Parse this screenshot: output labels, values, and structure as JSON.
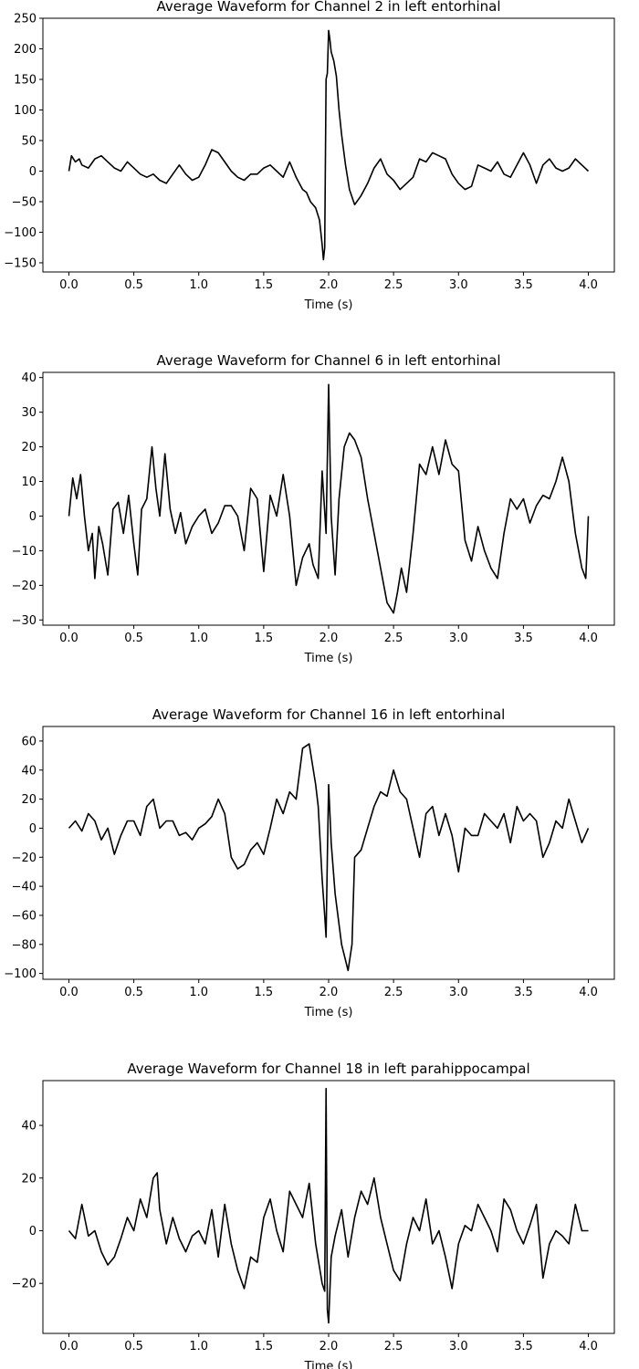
{
  "chart_data": [
    {
      "type": "line",
      "title": "Average Waveform for Channel 2 in  left entorhinal",
      "xlabel": "Time (s)",
      "ylabel": "",
      "xlim": [
        -0.2,
        4.2
      ],
      "ylim": [
        -165,
        250
      ],
      "xticks": [
        0.0,
        0.5,
        1.0,
        1.5,
        2.0,
        2.5,
        3.0,
        3.5,
        4.0
      ],
      "xtick_labels": [
        "0.0",
        "0.5",
        "1.0",
        "1.5",
        "2.0",
        "2.5",
        "3.0",
        "3.5",
        "4.0"
      ],
      "yticks": [
        250,
        200,
        150,
        100,
        50,
        0,
        -50,
        -100,
        -150
      ],
      "ytick_labels": [
        "250",
        "200",
        "150",
        "100",
        "50",
        "0",
        "−50",
        "−100",
        "−150"
      ],
      "grid": false,
      "series": [
        {
          "color": "#000000",
          "x": [
            0.0,
            0.02,
            0.05,
            0.08,
            0.1,
            0.15,
            0.2,
            0.25,
            0.3,
            0.35,
            0.4,
            0.45,
            0.5,
            0.55,
            0.6,
            0.65,
            0.7,
            0.75,
            0.8,
            0.85,
            0.9,
            0.95,
            1.0,
            1.05,
            1.1,
            1.15,
            1.2,
            1.25,
            1.3,
            1.35,
            1.4,
            1.45,
            1.5,
            1.55,
            1.6,
            1.65,
            1.7,
            1.75,
            1.8,
            1.83,
            1.86,
            1.9,
            1.93,
            1.95,
            1.96,
            1.97,
            1.98,
            1.99,
            2.0,
            2.01,
            2.02,
            2.04,
            2.06,
            2.08,
            2.1,
            2.13,
            2.16,
            2.2,
            2.25,
            2.3,
            2.35,
            2.4,
            2.45,
            2.5,
            2.55,
            2.6,
            2.65,
            2.7,
            2.75,
            2.8,
            2.85,
            2.9,
            2.95,
            3.0,
            3.05,
            3.1,
            3.15,
            3.2,
            3.25,
            3.3,
            3.35,
            3.4,
            3.45,
            3.5,
            3.55,
            3.6,
            3.65,
            3.7,
            3.75,
            3.8,
            3.85,
            3.9,
            3.95,
            4.0
          ],
          "y": [
            0,
            25,
            15,
            20,
            10,
            5,
            20,
            25,
            15,
            5,
            0,
            15,
            5,
            -5,
            -10,
            -5,
            -15,
            -20,
            -5,
            10,
            -5,
            -15,
            -10,
            10,
            35,
            30,
            15,
            0,
            -10,
            -15,
            -5,
            -5,
            5,
            10,
            0,
            -10,
            15,
            -10,
            -30,
            -35,
            -50,
            -60,
            -80,
            -120,
            -145,
            -125,
            150,
            160,
            230,
            215,
            195,
            180,
            155,
            100,
            60,
            10,
            -30,
            -55,
            -40,
            -20,
            5,
            20,
            -5,
            -15,
            -30,
            -20,
            -10,
            20,
            15,
            30,
            25,
            20,
            -5,
            -20,
            -30,
            -25,
            10,
            5,
            0,
            15,
            -5,
            -10,
            10,
            30,
            10,
            -20,
            10,
            20,
            5,
            0,
            5,
            20,
            10,
            0
          ]
        }
      ]
    },
    {
      "type": "line",
      "title": "Average Waveform for Channel 6 in  left entorhinal",
      "xlabel": "Time (s)",
      "ylabel": "",
      "xlim": [
        -0.2,
        4.2
      ],
      "ylim": [
        -31.5,
        41.5
      ],
      "xticks": [
        0.0,
        0.5,
        1.0,
        1.5,
        2.0,
        2.5,
        3.0,
        3.5,
        4.0
      ],
      "xtick_labels": [
        "0.0",
        "0.5",
        "1.0",
        "1.5",
        "2.0",
        "2.5",
        "3.0",
        "3.5",
        "4.0"
      ],
      "yticks": [
        40,
        30,
        20,
        10,
        0,
        -10,
        -20,
        -30
      ],
      "ytick_labels": [
        "40",
        "30",
        "20",
        "10",
        "0",
        "−10",
        "−20",
        "−30"
      ],
      "grid": false,
      "series": [
        {
          "color": "#000000",
          "x": [
            0.0,
            0.03,
            0.06,
            0.09,
            0.12,
            0.15,
            0.18,
            0.2,
            0.23,
            0.26,
            0.3,
            0.34,
            0.38,
            0.42,
            0.46,
            0.5,
            0.53,
            0.56,
            0.6,
            0.64,
            0.67,
            0.7,
            0.74,
            0.78,
            0.82,
            0.86,
            0.9,
            0.95,
            1.0,
            1.05,
            1.1,
            1.15,
            1.2,
            1.25,
            1.3,
            1.35,
            1.4,
            1.45,
            1.5,
            1.55,
            1.6,
            1.65,
            1.7,
            1.75,
            1.8,
            1.85,
            1.88,
            1.92,
            1.95,
            1.98,
            2.0,
            2.02,
            2.05,
            2.08,
            2.12,
            2.16,
            2.2,
            2.25,
            2.3,
            2.35,
            2.4,
            2.45,
            2.5,
            2.53,
            2.56,
            2.6,
            2.65,
            2.7,
            2.75,
            2.8,
            2.85,
            2.9,
            2.95,
            3.0,
            3.05,
            3.1,
            3.15,
            3.2,
            3.25,
            3.3,
            3.35,
            3.4,
            3.45,
            3.5,
            3.55,
            3.6,
            3.65,
            3.7,
            3.75,
            3.8,
            3.85,
            3.9,
            3.95,
            3.98,
            4.0
          ],
          "y": [
            0,
            11,
            5,
            12,
            0,
            -10,
            -5,
            -18,
            -3,
            -8,
            -17,
            2,
            4,
            -5,
            6,
            -8,
            -17,
            2,
            5,
            20,
            8,
            0,
            18,
            2,
            -5,
            1,
            -8,
            -3,
            0,
            2,
            -5,
            -2,
            3,
            3,
            0,
            -10,
            8,
            5,
            -16,
            6,
            0,
            12,
            0,
            -20,
            -12,
            -8,
            -14,
            -18,
            13,
            -5,
            38,
            0,
            -17,
            5,
            20,
            24,
            22,
            17,
            5,
            -5,
            -15,
            -25,
            -28,
            -22,
            -15,
            -22,
            -5,
            15,
            12,
            20,
            12,
            22,
            15,
            13,
            -7,
            -13,
            -3,
            -10,
            -15,
            -18,
            -5,
            5,
            2,
            5,
            -2,
            3,
            6,
            5,
            10,
            17,
            10,
            -5,
            -15,
            -18,
            0
          ]
        }
      ]
    },
    {
      "type": "line",
      "title": "Average Waveform for Channel 16 in  left entorhinal",
      "xlabel": "Time (s)",
      "ylabel": "",
      "xlim": [
        -0.2,
        4.2
      ],
      "ylim": [
        -104,
        70
      ],
      "xticks": [
        0.0,
        0.5,
        1.0,
        1.5,
        2.0,
        2.5,
        3.0,
        3.5,
        4.0
      ],
      "xtick_labels": [
        "0.0",
        "0.5",
        "1.0",
        "1.5",
        "2.0",
        "2.5",
        "3.0",
        "3.5",
        "4.0"
      ],
      "yticks": [
        60,
        40,
        20,
        0,
        -20,
        -40,
        -60,
        -80,
        -100
      ],
      "ytick_labels": [
        "60",
        "40",
        "20",
        "0",
        "−20",
        "−40",
        "−60",
        "−80",
        "−100"
      ],
      "grid": false,
      "series": [
        {
          "color": "#000000",
          "x": [
            0.0,
            0.05,
            0.1,
            0.15,
            0.2,
            0.25,
            0.3,
            0.35,
            0.4,
            0.45,
            0.5,
            0.55,
            0.6,
            0.65,
            0.7,
            0.75,
            0.8,
            0.85,
            0.9,
            0.95,
            1.0,
            1.05,
            1.1,
            1.15,
            1.2,
            1.25,
            1.3,
            1.35,
            1.4,
            1.45,
            1.5,
            1.55,
            1.6,
            1.65,
            1.7,
            1.75,
            1.8,
            1.85,
            1.9,
            1.92,
            1.95,
            1.97,
            1.98,
            1.99,
            2.0,
            2.02,
            2.05,
            2.1,
            2.15,
            2.18,
            2.2,
            2.25,
            2.3,
            2.35,
            2.4,
            2.45,
            2.5,
            2.55,
            2.6,
            2.65,
            2.7,
            2.75,
            2.8,
            2.85,
            2.9,
            2.95,
            3.0,
            3.05,
            3.1,
            3.15,
            3.2,
            3.25,
            3.3,
            3.35,
            3.4,
            3.45,
            3.5,
            3.55,
            3.6,
            3.65,
            3.7,
            3.75,
            3.8,
            3.85,
            3.9,
            3.95,
            4.0
          ],
          "y": [
            0,
            5,
            -2,
            10,
            5,
            -8,
            0,
            -18,
            -5,
            5,
            5,
            -5,
            15,
            20,
            0,
            5,
            5,
            -5,
            -3,
            -8,
            0,
            3,
            8,
            20,
            10,
            -20,
            -28,
            -25,
            -15,
            -10,
            -18,
            0,
            20,
            10,
            25,
            20,
            55,
            58,
            30,
            15,
            -35,
            -60,
            -75,
            -20,
            30,
            -10,
            -45,
            -80,
            -98,
            -80,
            -20,
            -15,
            0,
            15,
            25,
            22,
            40,
            25,
            20,
            0,
            -20,
            10,
            15,
            -5,
            10,
            -5,
            -30,
            0,
            -5,
            -5,
            10,
            5,
            0,
            10,
            -10,
            15,
            5,
            10,
            5,
            -20,
            -10,
            5,
            0,
            20,
            5,
            -10,
            0
          ]
        }
      ]
    },
    {
      "type": "line",
      "title": "Average Waveform for Channel 18 in  left parahippocampal",
      "xlabel": "Time (s)",
      "ylabel": "",
      "xlim": [
        -0.2,
        4.2
      ],
      "ylim": [
        -39,
        57
      ],
      "xticks": [
        0.0,
        0.5,
        1.0,
        1.5,
        2.0,
        2.5,
        3.0,
        3.5,
        4.0
      ],
      "xtick_labels": [
        "0.0",
        "0.5",
        "1.0",
        "1.5",
        "2.0",
        "2.5",
        "3.0",
        "3.5",
        "4.0"
      ],
      "yticks": [
        40,
        20,
        0,
        -20
      ],
      "ytick_labels": [
        "40",
        "20",
        "0",
        "−20"
      ],
      "grid": false,
      "series": [
        {
          "color": "#000000",
          "x": [
            0.0,
            0.05,
            0.1,
            0.15,
            0.2,
            0.25,
            0.3,
            0.35,
            0.4,
            0.45,
            0.5,
            0.55,
            0.6,
            0.65,
            0.68,
            0.7,
            0.75,
            0.8,
            0.85,
            0.9,
            0.95,
            1.0,
            1.05,
            1.1,
            1.15,
            1.2,
            1.25,
            1.3,
            1.35,
            1.4,
            1.45,
            1.5,
            1.55,
            1.6,
            1.65,
            1.7,
            1.75,
            1.8,
            1.85,
            1.9,
            1.95,
            1.97,
            1.98,
            1.99,
            2.0,
            2.02,
            2.05,
            2.1,
            2.15,
            2.2,
            2.25,
            2.3,
            2.35,
            2.4,
            2.45,
            2.5,
            2.55,
            2.6,
            2.65,
            2.7,
            2.75,
            2.8,
            2.85,
            2.9,
            2.95,
            3.0,
            3.05,
            3.1,
            3.15,
            3.2,
            3.25,
            3.3,
            3.35,
            3.4,
            3.45,
            3.5,
            3.55,
            3.6,
            3.65,
            3.7,
            3.75,
            3.8,
            3.85,
            3.9,
            3.95,
            4.0
          ],
          "y": [
            0,
            -3,
            10,
            -2,
            0,
            -8,
            -13,
            -10,
            -3,
            5,
            0,
            12,
            5,
            20,
            22,
            8,
            -5,
            5,
            -3,
            -8,
            -2,
            0,
            -5,
            8,
            -10,
            10,
            -5,
            -15,
            -22,
            -10,
            -12,
            5,
            12,
            0,
            -8,
            15,
            10,
            5,
            18,
            -5,
            -20,
            -23,
            54,
            -30,
            -35,
            -10,
            -2,
            8,
            -10,
            5,
            15,
            10,
            20,
            5,
            -5,
            -15,
            -19,
            -5,
            5,
            0,
            12,
            -5,
            0,
            -10,
            -22,
            -5,
            2,
            0,
            10,
            5,
            0,
            -8,
            12,
            8,
            0,
            -5,
            2,
            10,
            -18,
            -5,
            0,
            -2,
            -5,
            10,
            0,
            0
          ]
        }
      ]
    }
  ]
}
